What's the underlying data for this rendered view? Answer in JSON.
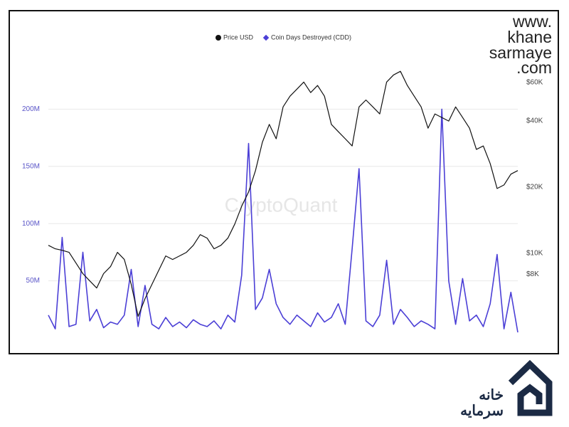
{
  "chart_data": {
    "type": "line",
    "legend": "top",
    "watermark": "CryptoQuant",
    "grid": true,
    "ylim": [
      0,
      250000000
    ],
    "yticks": [
      {
        "value": 50000000,
        "label": "50M"
      },
      {
        "value": 100000000,
        "label": "100M"
      },
      {
        "value": 150000000,
        "label": "150M"
      },
      {
        "value": 200000000,
        "label": "200M"
      }
    ],
    "y2scale": "log",
    "y2lim": [
      4100,
      82600
    ],
    "y2ticks": [
      {
        "value": 8000,
        "label": "$8K"
      },
      {
        "value": 10000,
        "label": "$10K"
      },
      {
        "value": 20000,
        "label": "$20K"
      },
      {
        "value": 40000,
        "label": "$40K"
      },
      {
        "value": 60000,
        "label": "$60K"
      }
    ],
    "series": [
      {
        "name": "Price USD",
        "color": "#111111",
        "axis": "y2",
        "marker": "circle",
        "values": [
          10850,
          10460,
          10300,
          10080,
          9010,
          8060,
          7470,
          6930,
          8060,
          8680,
          10080,
          9350,
          7200,
          5150,
          6200,
          7200,
          8360,
          9710,
          9350,
          9710,
          10080,
          10850,
          12140,
          11700,
          10460,
          10850,
          11700,
          13570,
          16360,
          18990,
          23770,
          32000,
          38600,
          33200,
          46400,
          51900,
          55900,
          60200,
          53900,
          58100,
          51900,
          38600,
          35800,
          33200,
          30800,
          46400,
          49900,
          46400,
          43100,
          60200,
          64900,
          67400,
          58100,
          51900,
          46400,
          37100,
          43100,
          41500,
          40000,
          46400,
          41500,
          37100,
          29700,
          30800,
          25600,
          19700,
          20450,
          22900,
          23770
        ]
      },
      {
        "name": "Coin Days Destroyed (CDD)",
        "color": "#4b3fd6",
        "marker": "diamond",
        "values": [
          20000000,
          8000000,
          88000000,
          10000000,
          12000000,
          75000000,
          15000000,
          25000000,
          9000000,
          14000000,
          12000000,
          20000000,
          60000000,
          10000000,
          46000000,
          12000000,
          8000000,
          18000000,
          10000000,
          14000000,
          9000000,
          16000000,
          12000000,
          10000000,
          15000000,
          8000000,
          20000000,
          14000000,
          55000000,
          170000000,
          25000000,
          35000000,
          60000000,
          30000000,
          18000000,
          12000000,
          20000000,
          15000000,
          10000000,
          22000000,
          14000000,
          18000000,
          30000000,
          12000000,
          78000000,
          148000000,
          15000000,
          10000000,
          20000000,
          68000000,
          12000000,
          25000000,
          18000000,
          10000000,
          15000000,
          12000000,
          8000000,
          200000000,
          50000000,
          12000000,
          52000000,
          15000000,
          20000000,
          10000000,
          30000000,
          73000000,
          8000000,
          40000000,
          5000000
        ]
      }
    ]
  },
  "brand": {
    "lines": [
      "www.",
      "khane",
      "sarmaye",
      ".com"
    ],
    "persian": [
      "خانه",
      "سرمایه"
    ]
  }
}
